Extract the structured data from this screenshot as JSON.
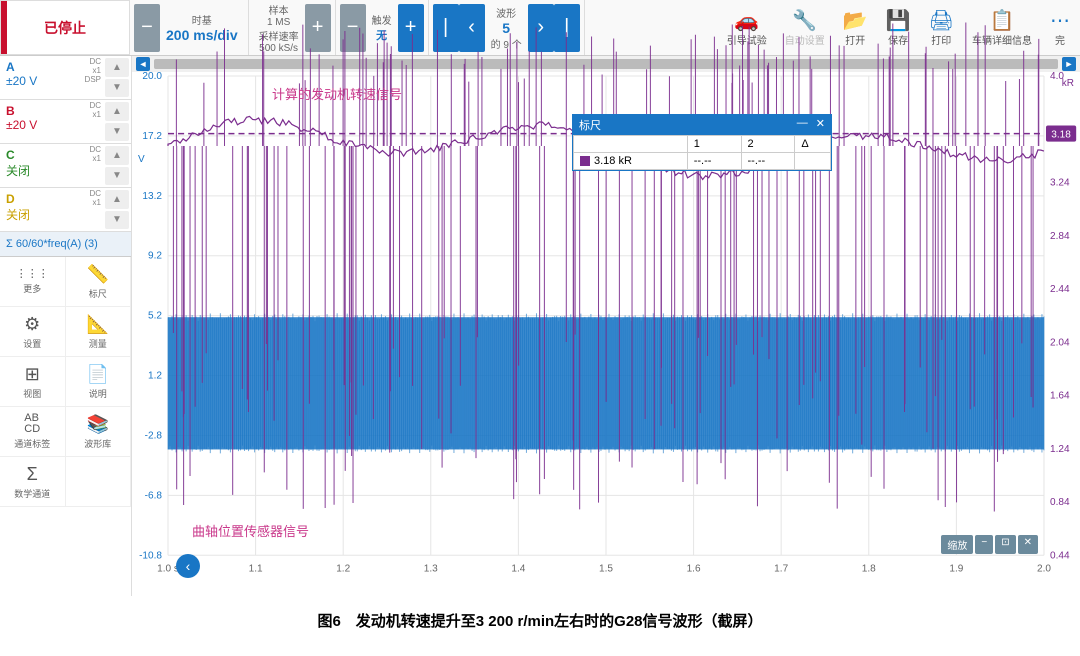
{
  "toolbar": {
    "stop_label": "已停止",
    "timebase": {
      "label": "时基",
      "value": "200 ms/div"
    },
    "sample": {
      "label": "样本",
      "value": "1 MS",
      "rate_label": "采样速率",
      "rate": "500 kS/s"
    },
    "trigger": {
      "label": "触发",
      "mode": "无"
    },
    "waveform": {
      "label": "波形",
      "current": "5",
      "total": "的 9 个"
    },
    "icons": [
      {
        "icon": "🚗",
        "label": "引导试验",
        "enabled": true
      },
      {
        "icon": "🔧",
        "label": "自动设置",
        "enabled": false
      },
      {
        "icon": "📂",
        "label": "打开",
        "enabled": true
      },
      {
        "icon": "💾",
        "label": "保存",
        "enabled": true
      },
      {
        "icon": "🖨",
        "label": "打印",
        "enabled": true
      },
      {
        "icon": "📋",
        "label": "车辆详细信息",
        "enabled": true
      },
      {
        "icon": "⋯",
        "label": "完",
        "enabled": true
      }
    ]
  },
  "channels": [
    {
      "id": "A",
      "range": "±20 V",
      "meta": "DC\nx1\nDSP",
      "cls": "ch-a",
      "active": true
    },
    {
      "id": "B",
      "range": "±20 V",
      "meta": "DC\nx1",
      "cls": "ch-b",
      "active": true
    },
    {
      "id": "C",
      "range": "关闭",
      "meta": "DC\nx1",
      "cls": "ch-c",
      "active": false
    },
    {
      "id": "D",
      "range": "关闭",
      "meta": "DC\nx1",
      "cls": "ch-d",
      "active": false
    }
  ],
  "sigma": "Σ 60/60*freq(A) (3)",
  "tools": [
    {
      "icon": "⋮⋮⋮",
      "label": "更多"
    },
    {
      "icon": "📏",
      "label": "标尺"
    },
    {
      "icon": "⚙",
      "label": "设置"
    },
    {
      "icon": "📐",
      "label": "测量"
    },
    {
      "icon": "⊞",
      "label": "视图"
    },
    {
      "icon": "📄",
      "label": "说明"
    },
    {
      "icon": "AB\nCD",
      "label": "通道标签"
    },
    {
      "icon": "📚",
      "label": "波形库"
    },
    {
      "icon": "Σ",
      "label": "数学通道"
    },
    {
      "icon": "",
      "label": ""
    }
  ],
  "chart": {
    "left_unit": "V",
    "right_unit": "kR",
    "left_ticks": [
      "20.0",
      "17.2",
      "13.2",
      "9.2",
      "5.2",
      "1.2",
      "-2.8",
      "-6.8",
      "-10.8"
    ],
    "right_ticks": [
      "4.0",
      "3.64",
      "3.24",
      "2.84",
      "2.44",
      "2.04",
      "1.64",
      "1.24",
      "0.84",
      "0.44"
    ],
    "x_ticks": [
      "1.0 s",
      "1.1",
      "1.2",
      "1.3",
      "1.4",
      "1.5",
      "1.6",
      "1.7",
      "1.8",
      "1.9",
      "2.0"
    ],
    "annotation_top": "计算的发动机转速信号",
    "annotation_bottom": "曲轴位置传感器信号",
    "marker_value": "3.18",
    "colors": {
      "ch_a": "#1976c5",
      "ch_b": "#c8102e",
      "math": "#7b2d8e",
      "grid": "#e5e5e5",
      "bg": "#ffffff"
    },
    "blue_band": {
      "top_v": 4.5,
      "bottom_v": -4.0
    },
    "purple_baseline_v": 15.5,
    "zoom_label": "缩放"
  },
  "ruler": {
    "title": "标尺",
    "headers": [
      "",
      "1",
      "2",
      "Δ"
    ],
    "row": [
      "3.18 kR",
      "--.--",
      "--.--"
    ]
  },
  "caption": "图6　发动机转速提升至3 200 r/min左右时的G28信号波形（截屏）"
}
